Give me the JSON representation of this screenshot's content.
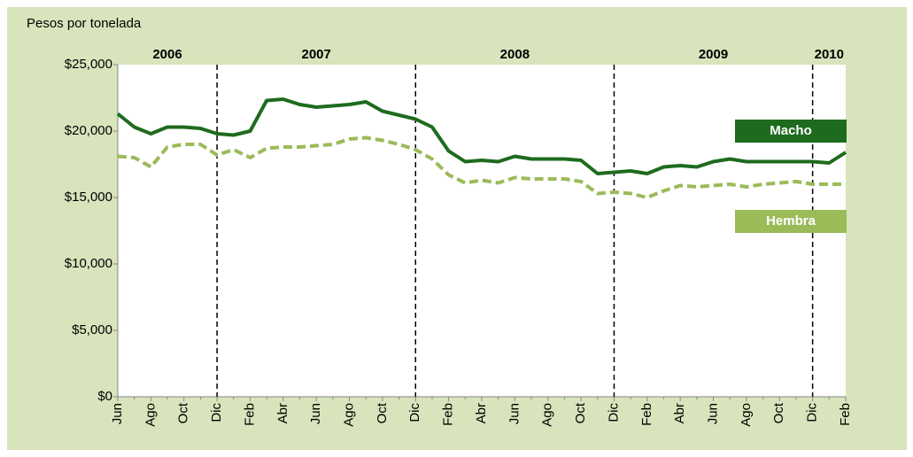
{
  "chart_data": {
    "type": "line",
    "y_axis_title": "Pesos por tonelada",
    "years": [
      "2006",
      "2007",
      "2008",
      "2009",
      "2010"
    ],
    "categories": [
      "Jun",
      null,
      "Ago",
      null,
      "Oct",
      null,
      "Dic",
      null,
      "Feb",
      null,
      "Abr",
      null,
      "Jun",
      null,
      "Ago",
      null,
      "Oct",
      null,
      "Dic",
      null,
      "Feb",
      null,
      "Abr",
      null,
      "Jun",
      null,
      "Ago",
      null,
      "Oct",
      null,
      "Dic",
      null,
      "Feb",
      null,
      "Abr",
      null,
      "Jun",
      null,
      "Ago",
      null,
      "Oct",
      null,
      "Dic",
      null,
      "Feb"
    ],
    "series": [
      {
        "name": "Macho",
        "color": "#1e6b1e",
        "dashed": false,
        "values": [
          21300,
          20300,
          19800,
          20300,
          20300,
          20200,
          19800,
          19700,
          20000,
          22300,
          22400,
          22000,
          21800,
          21900,
          22000,
          22200,
          21500,
          21200,
          20900,
          20300,
          18500,
          17700,
          17800,
          17700,
          18100,
          17900,
          17900,
          17900,
          17800,
          16800,
          16900,
          17000,
          16800,
          17300,
          17400,
          17300,
          17700,
          17900,
          17700,
          17700,
          17700,
          17700,
          17700,
          17600,
          18400
        ]
      },
      {
        "name": "Hembra",
        "color": "#9bbb59",
        "dashed": true,
        "values": [
          18100,
          18000,
          17300,
          18800,
          19000,
          19000,
          18200,
          18600,
          18000,
          18700,
          18800,
          18800,
          18900,
          19000,
          19400,
          19500,
          19300,
          19000,
          18600,
          17900,
          16700,
          16100,
          16300,
          16100,
          16500,
          16400,
          16400,
          16400,
          16200,
          15300,
          15400,
          15300,
          15000,
          15500,
          15900,
          15800,
          15900,
          16000,
          15800,
          16000,
          16100,
          16200,
          16000,
          16000,
          16000
        ]
      }
    ],
    "ylim": [
      0,
      25000
    ],
    "yticks": [
      {
        "value": 0,
        "label": "$0"
      },
      {
        "value": 5000,
        "label": "$5,000"
      },
      {
        "value": 10000,
        "label": "$10,000"
      },
      {
        "value": 15000,
        "label": "$15,000"
      },
      {
        "value": 20000,
        "label": "$20,000"
      },
      {
        "value": 25000,
        "label": "$25,000"
      }
    ]
  }
}
